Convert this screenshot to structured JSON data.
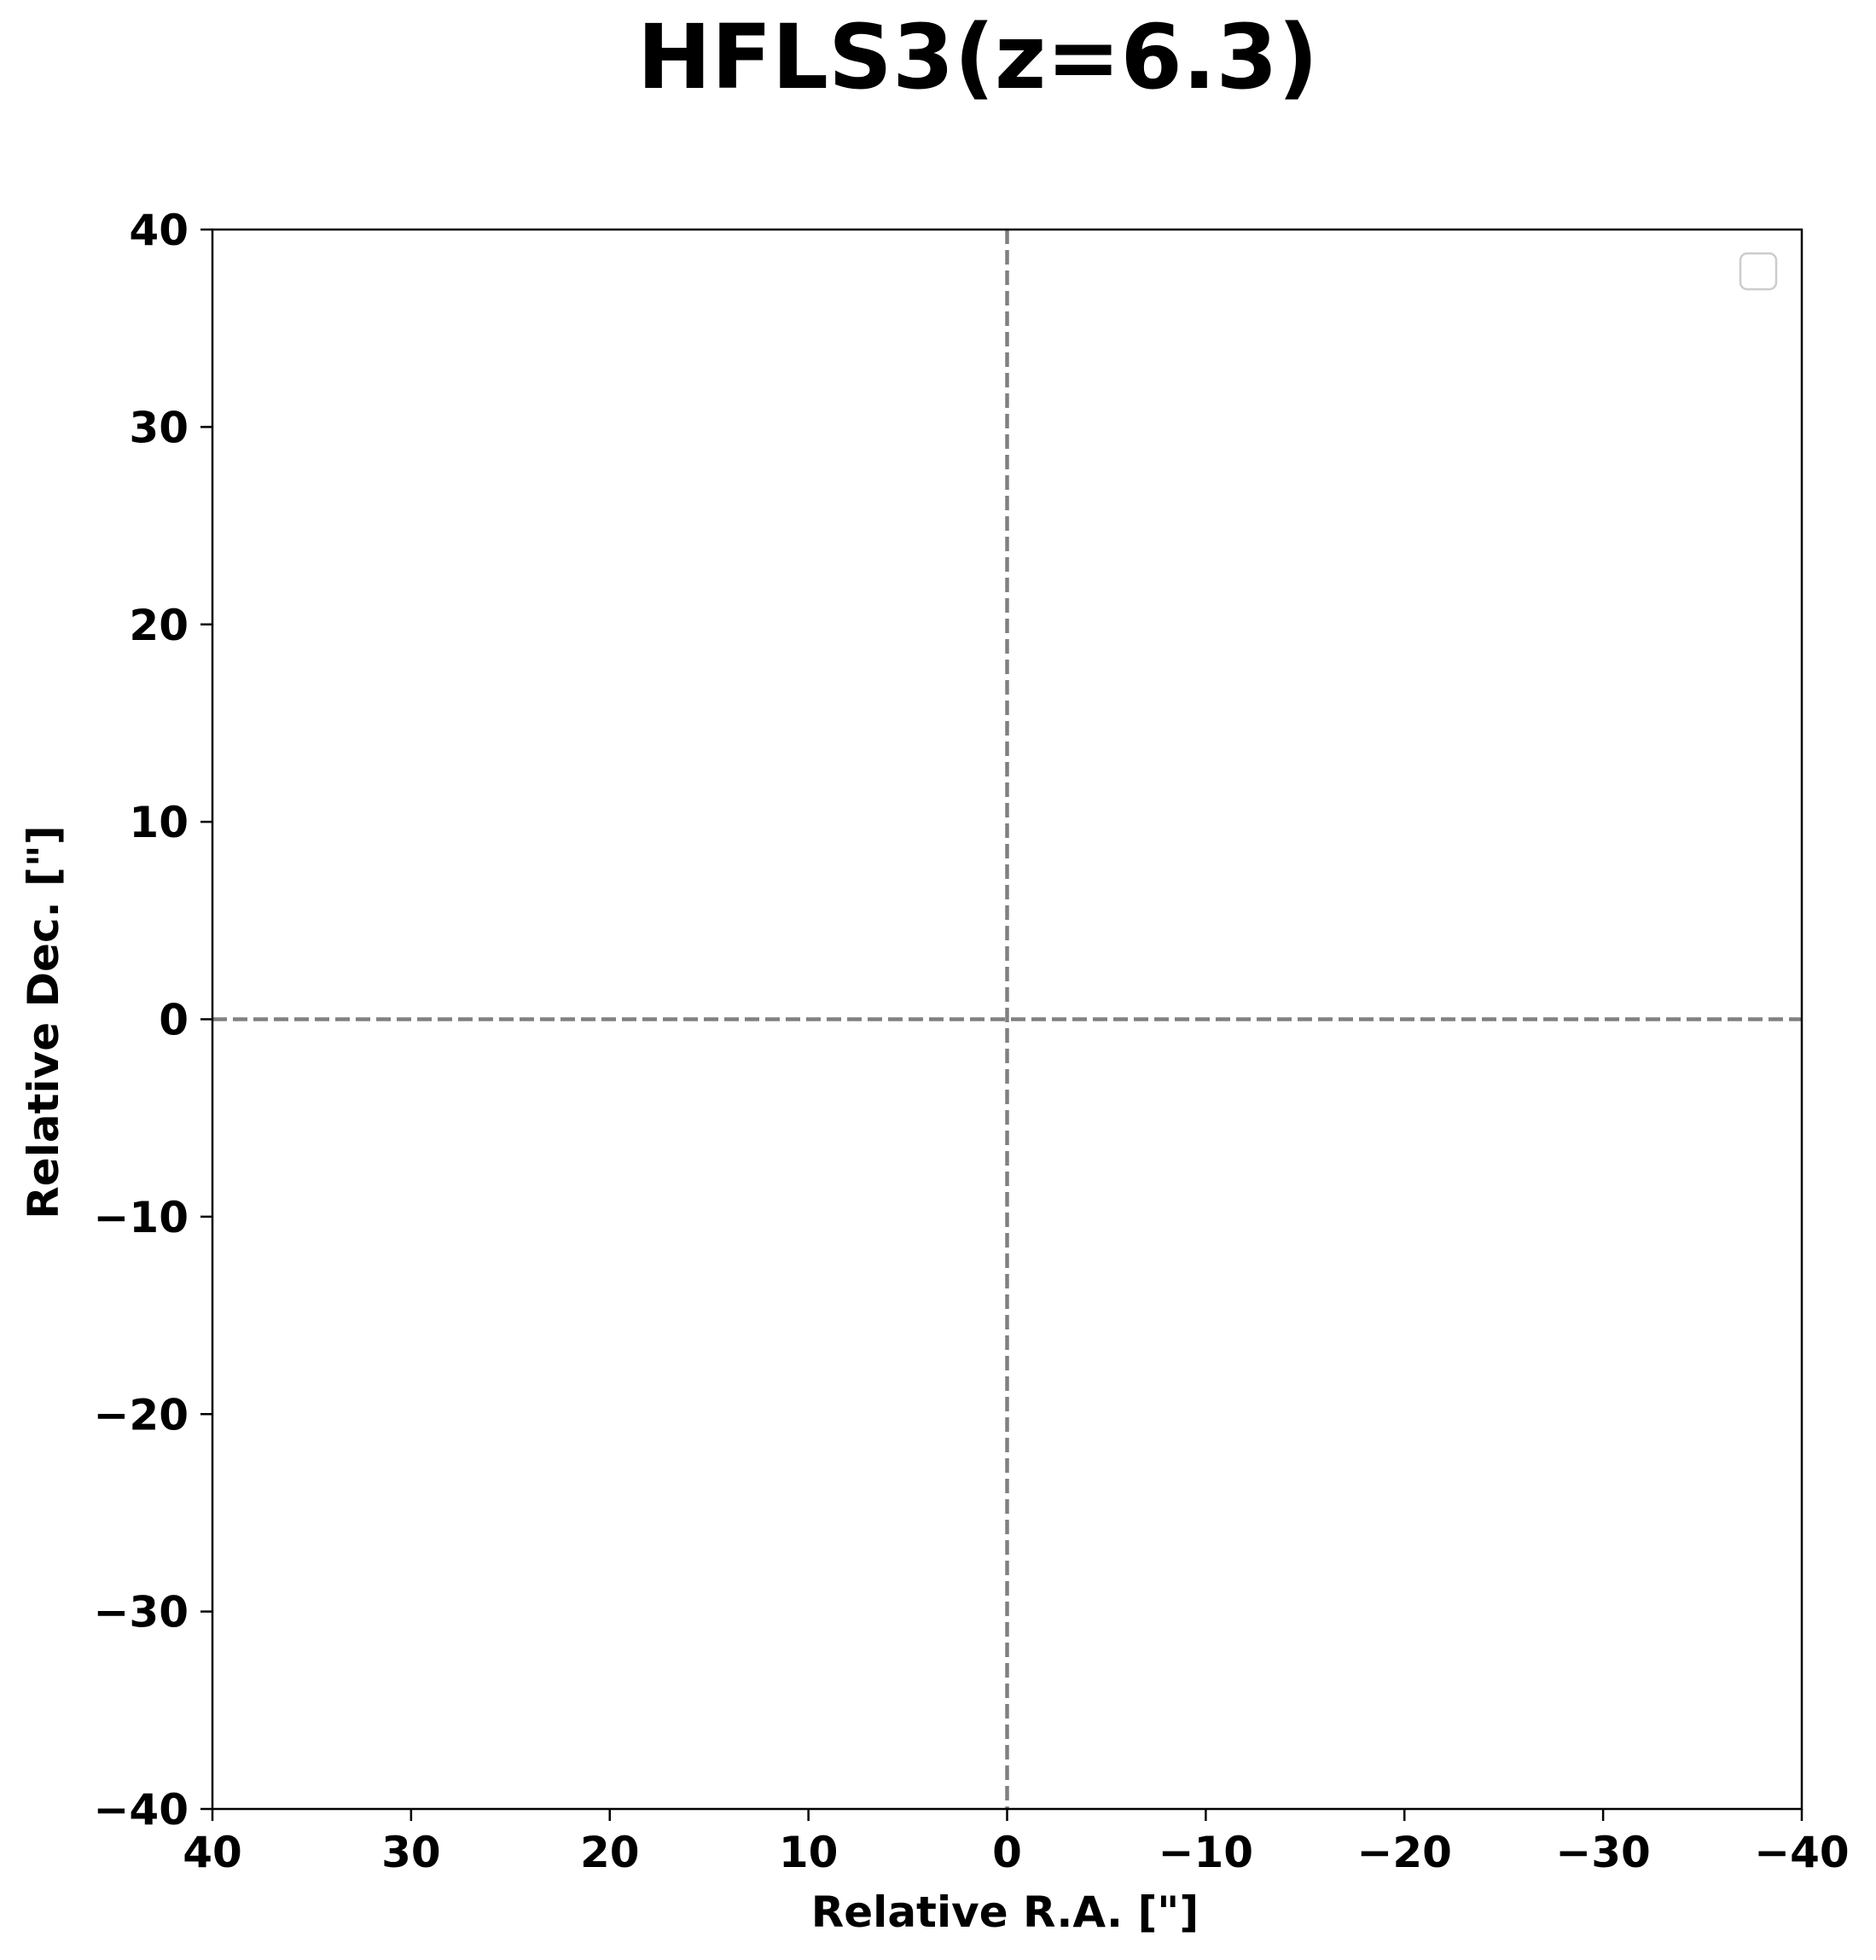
{
  "chart_data": {
    "type": "scatter",
    "title": "HFLS3(z=6.3)",
    "xlabel": "Relative R.A. [\"]",
    "ylabel": "Relative Dec. [\"]",
    "xlim": [
      40,
      -40
    ],
    "ylim": [
      -40,
      40
    ],
    "x_inverted": true,
    "xticks": [
      40,
      30,
      20,
      10,
      0,
      -10,
      -20,
      -30,
      -40
    ],
    "yticks": [
      40,
      30,
      20,
      10,
      0,
      -10,
      -20,
      -30,
      -40
    ],
    "xtick_labels": [
      "40",
      "30",
      "20",
      "10",
      "0",
      "−10",
      "−20",
      "−30",
      "−40"
    ],
    "ytick_labels": [
      "40",
      "30",
      "20",
      "10",
      "0",
      "−10",
      "−20",
      "−30",
      "−40"
    ],
    "reference_lines": [
      {
        "orientation": "vertical",
        "x": 0,
        "style": "dashed",
        "color": "#808080"
      },
      {
        "orientation": "horizontal",
        "y": 0,
        "style": "dashed",
        "color": "#808080"
      }
    ],
    "series": [],
    "legend": {
      "placement": "top-right",
      "entries": []
    },
    "grid": false
  },
  "colors": {
    "axes": "#000000",
    "reference_line": "#808080",
    "legend_border": "#cccccc",
    "background": "#ffffff"
  }
}
